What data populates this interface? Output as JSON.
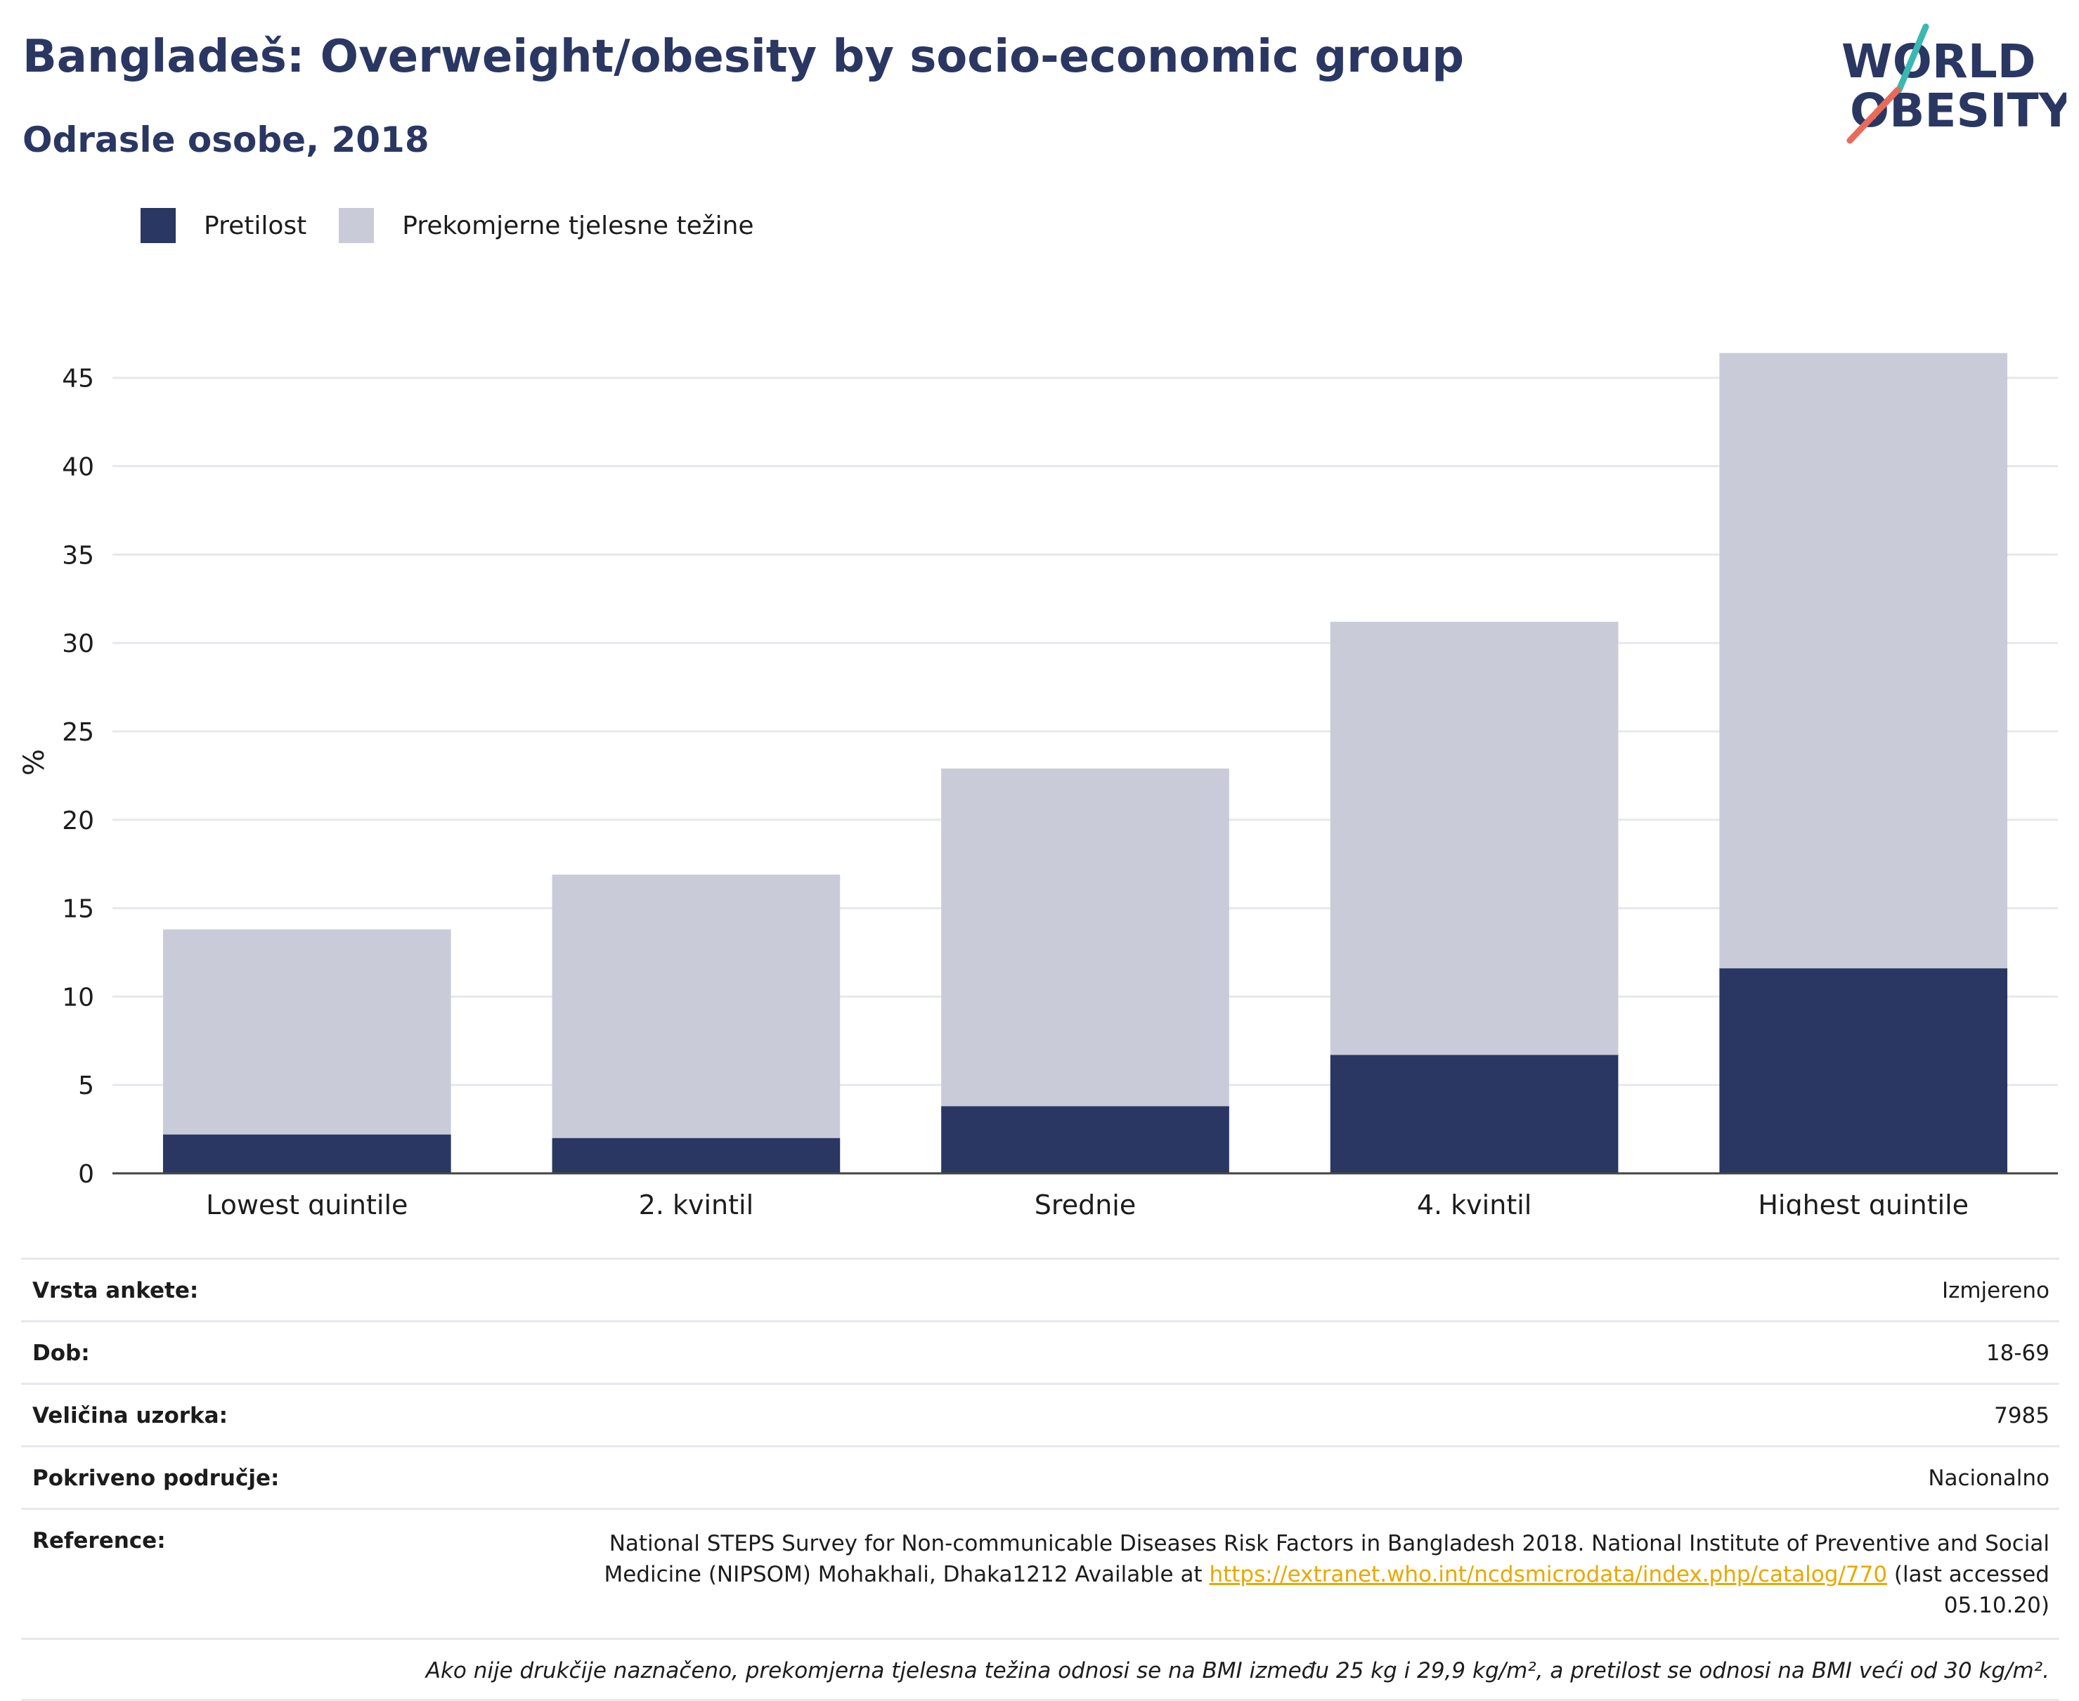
{
  "header": {
    "title": "Bangladeš: Overweight/obesity by socio-economic group",
    "subtitle": "Odrasle osobe, 2018"
  },
  "logo": {
    "line1": "WORLD",
    "line2": "OBESITY"
  },
  "colors": {
    "obesity": "#2a3763",
    "overweight": "#c9ccd8",
    "title": "#2a3763",
    "grid": "#e6e8ee"
  },
  "chart_data": {
    "type": "bar",
    "stacked": true,
    "categories": [
      "Lowest quintile",
      "2. kvintil",
      "Srednje",
      "4. kvintil",
      "Highest quintile"
    ],
    "series": [
      {
        "name": "Pretilost",
        "values": [
          2.2,
          2.0,
          3.8,
          6.7,
          11.6
        ]
      },
      {
        "name": "Prekomjerne tjelesne težine",
        "values": [
          11.6,
          14.9,
          19.1,
          24.5,
          34.8
        ]
      }
    ],
    "ylabel": "%",
    "xlabel": "",
    "ylim": [
      0,
      46.5
    ],
    "yticks": [
      0,
      5,
      10,
      15,
      20,
      25,
      30,
      35,
      40,
      45
    ],
    "grid": true,
    "legend": "top-left"
  },
  "info": {
    "rows": [
      {
        "label": "Vrsta ankete:",
        "value": "Izmjereno"
      },
      {
        "label": "Dob:",
        "value": "18-69"
      },
      {
        "label": "Veličina uzorka:",
        "value": "7985"
      },
      {
        "label": "Pokriveno područje:",
        "value": "Nacionalno"
      }
    ],
    "reference": {
      "label": "Reference:",
      "text_before": "National STEPS Survey for Non-communicable Diseases Risk Factors in Bangladesh 2018. National Institute of Preventive and Social Medicine (NIPSOM) Mohakhali, Dhaka1212 Available at ",
      "link": "https://extranet.who.int/ncdsmicrodata/index.php/catalog/770",
      "text_after": " (last accessed 05.10.20)"
    },
    "footnote": "Ako nije drukčije naznačeno, prekomjerna tjelesna težina odnosi se na BMI između 25 kg i 29,9 kg/m², a pretilost se odnosi na BMI veći od 30 kg/m²."
  }
}
